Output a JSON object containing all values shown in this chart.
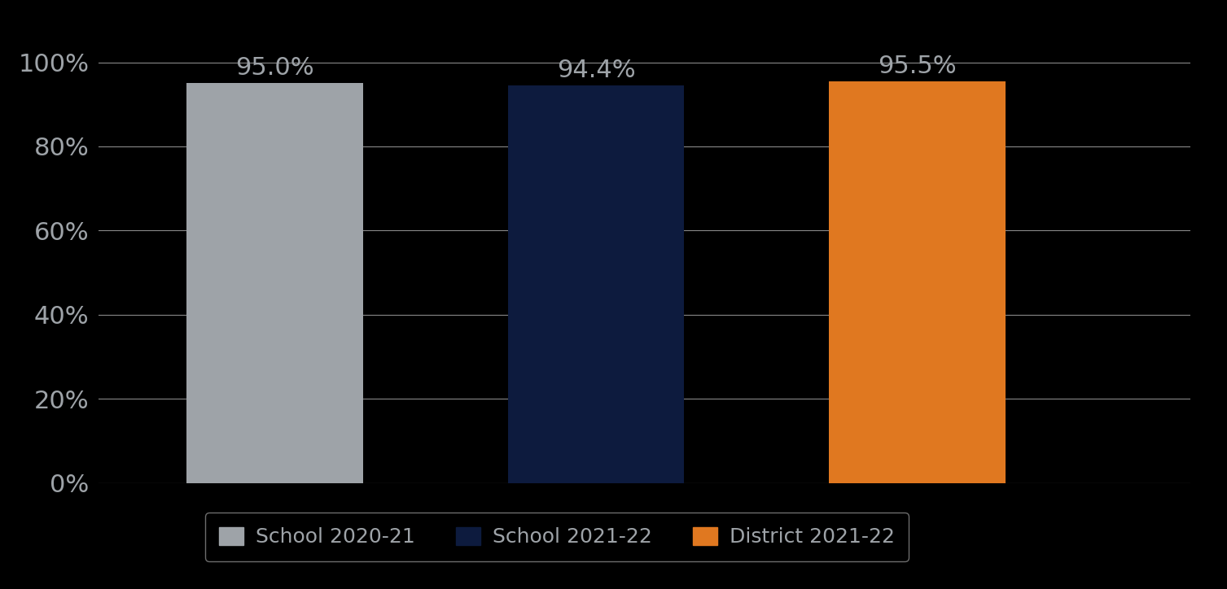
{
  "categories": [
    "School 2020-21",
    "School 2021-22",
    "District 2021-22"
  ],
  "values": [
    0.95,
    0.944,
    0.955
  ],
  "bar_colors": [
    "#9EA3A8",
    "#0D1B3E",
    "#E07820"
  ],
  "bar_labels": [
    "95.0%",
    "94.4%",
    "95.5%"
  ],
  "background_color": "#000000",
  "text_color": "#9EA3A8",
  "label_color": "#9EA3A8",
  "grid_color": "#888888",
  "legend_bg": "#000000",
  "legend_edge": "#888888",
  "ylim": [
    0,
    1.05
  ],
  "yticks": [
    0,
    0.2,
    0.4,
    0.6,
    0.8,
    1.0
  ],
  "ytick_labels": [
    "0%",
    "20%",
    "40%",
    "60%",
    "80%",
    "100%"
  ],
  "bar_width": 0.55,
  "tick_fontsize": 22,
  "legend_fontsize": 18,
  "annotation_fontsize": 22,
  "x_positions": [
    1.0,
    2.0,
    3.0
  ],
  "xlim": [
    0.45,
    3.85
  ]
}
